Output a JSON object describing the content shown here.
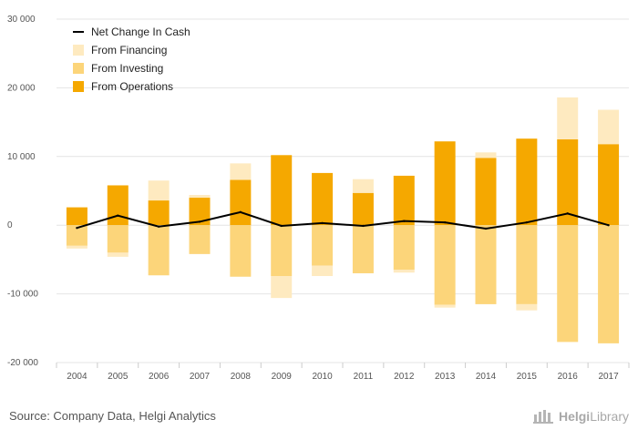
{
  "chart_data": {
    "type": "bar",
    "stacked": true,
    "categories": [
      "2004",
      "2005",
      "2006",
      "2007",
      "2008",
      "2009",
      "2010",
      "2011",
      "2012",
      "2013",
      "2014",
      "2015",
      "2016",
      "2017"
    ],
    "ylim": [
      -20000,
      30000
    ],
    "yticks": [
      -20000,
      -10000,
      0,
      10000,
      20000,
      30000
    ],
    "ytick_labels": [
      "-20 000",
      "-10 000",
      "0",
      "10 000",
      "20 000",
      "30 000"
    ],
    "grid": true,
    "legend_position": "top-left",
    "series": [
      {
        "name": "From Operations",
        "color": "#f5a800",
        "values": [
          2600,
          5800,
          3600,
          4000,
          6600,
          10200,
          7600,
          4700,
          7200,
          12200,
          9800,
          12600,
          12500,
          11800
        ]
      },
      {
        "name": "From Investing",
        "color": "#fcd57a",
        "values": [
          -3000,
          -4000,
          -7300,
          -4200,
          -7500,
          -7400,
          -5900,
          -7000,
          -6500,
          -11600,
          -11500,
          -11500,
          -17000,
          -17200
        ]
      },
      {
        "name": "From Financing",
        "color": "#feeac0",
        "values": [
          -400,
          -600,
          2900,
          400,
          2400,
          -3200,
          -1500,
          2000,
          -400,
          -400,
          800,
          -900,
          6100,
          5000
        ]
      },
      {
        "name": "Net Change In Cash",
        "type": "line",
        "color": "#000000",
        "values": [
          -400,
          1400,
          -200,
          500,
          1900,
          -100,
          300,
          -100,
          600,
          400,
          -500,
          400,
          1700,
          0
        ]
      }
    ]
  },
  "legend": {
    "items": [
      {
        "label": "Net Change In Cash",
        "kind": "line",
        "color": "#000000"
      },
      {
        "label": "From Financing",
        "kind": "box",
        "color": "#feeac0"
      },
      {
        "label": "From Investing",
        "kind": "box",
        "color": "#fcd57a"
      },
      {
        "label": "From Operations",
        "kind": "box",
        "color": "#f5a800"
      }
    ]
  },
  "footer": {
    "source": "Source: Company Data, Helgi Analytics",
    "brand_prefix": "Helgi",
    "brand_suffix": "Library"
  },
  "colors": {
    "grid": "#e4e4e4",
    "axis": "#cccccc"
  }
}
